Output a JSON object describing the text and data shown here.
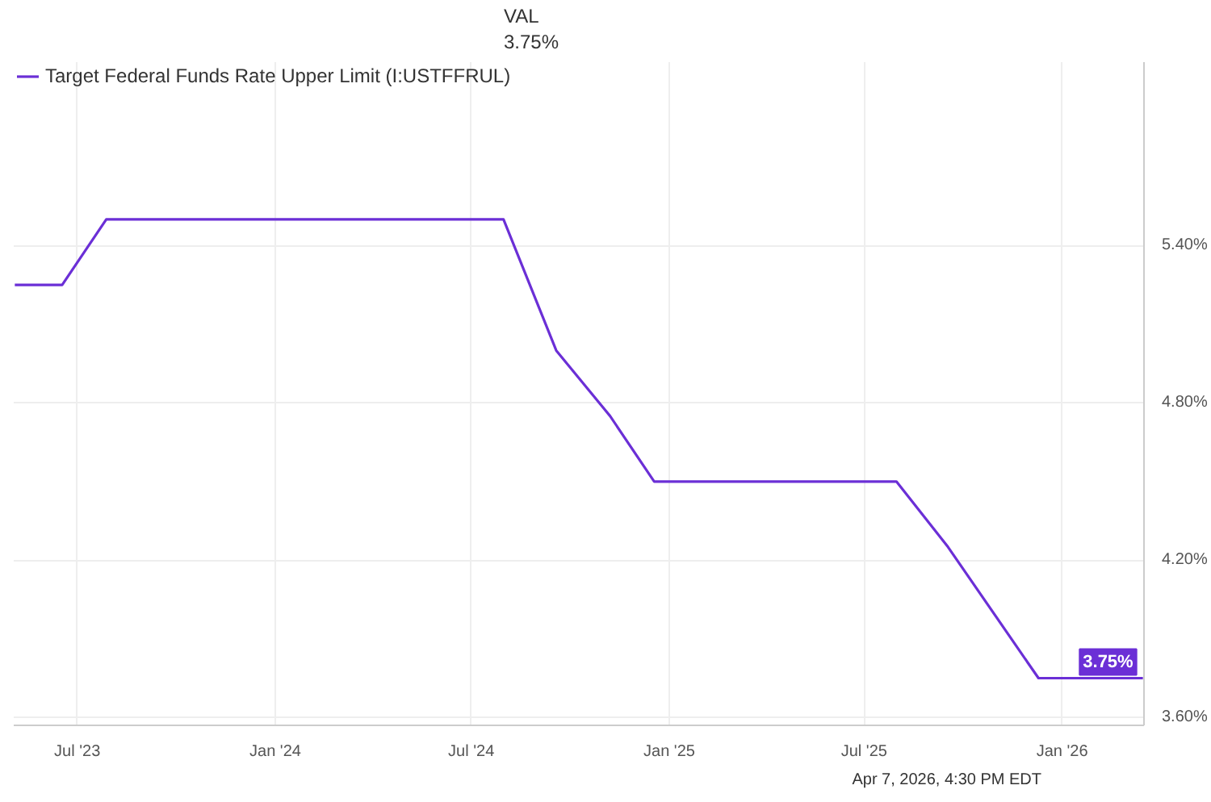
{
  "chart_data": {
    "type": "line",
    "x": [
      "2023-05-04",
      "2023-06-17",
      "2023-07-28",
      "2024-07-31",
      "2024-09-18",
      "2024-11-07",
      "2024-12-18",
      "2025-07-31",
      "2025-09-17",
      "2025-12-10",
      "2026-03-17"
    ],
    "series": [
      {
        "name": "Target Federal Funds Rate Upper Limit (I:USTFFRUL)",
        "color": "#6b2fd6",
        "values": [
          5.25,
          5.25,
          5.5,
          5.5,
          5.0,
          4.75,
          4.5,
          4.5,
          4.25,
          3.75,
          3.75
        ]
      }
    ],
    "xlim": [
      "2023-05-03",
      "2026-03-18"
    ],
    "xticks": [
      {
        "value": "2023-07-01",
        "label": "Jul '23"
      },
      {
        "value": "2024-01-01",
        "label": "Jan '24"
      },
      {
        "value": "2024-07-01",
        "label": "Jul '24"
      },
      {
        "value": "2025-01-01",
        "label": "Jan '25"
      },
      {
        "value": "2025-07-01",
        "label": "Jul '25"
      },
      {
        "value": "2026-01-01",
        "label": "Jan '26"
      }
    ],
    "ylim": [
      3.57,
      6.1
    ],
    "yticks": [
      {
        "value": 3.6,
        "label": "3.60%"
      },
      {
        "value": 4.2,
        "label": "4.20%"
      },
      {
        "value": 4.8,
        "label": "4.80%"
      },
      {
        "value": 5.4,
        "label": "5.40%"
      }
    ],
    "grid": true,
    "legend": "top",
    "marker": "none",
    "line_style": "solid",
    "annotations": [
      "VAL",
      "3.75%",
      {
        "text": "3.75%",
        "x": "2026-03-17",
        "y": 3.75
      },
      "Apr 7, 2026, 4:30 PM EDT"
    ]
  }
}
